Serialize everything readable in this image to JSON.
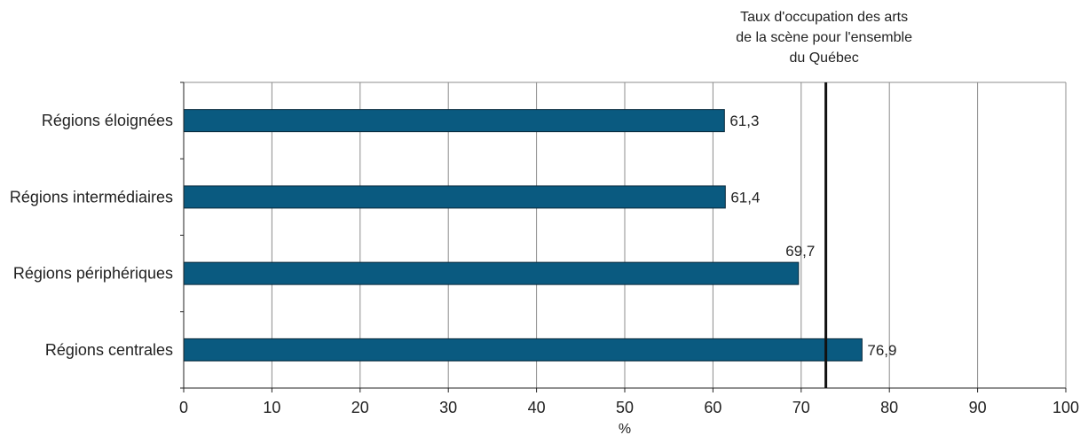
{
  "chart_data": {
    "type": "bar",
    "orientation": "horizontal",
    "categories": [
      "Régions éloignées",
      "Régions intermédiaires",
      "Régions périphériques",
      "Régions centrales"
    ],
    "values": [
      61.3,
      61.4,
      69.7,
      76.9
    ],
    "value_labels": [
      "61,3",
      "61,4",
      "69,7",
      "76,9"
    ],
    "xlabel": "%",
    "xlim": [
      0,
      100
    ],
    "xticks": [
      0,
      10,
      20,
      30,
      40,
      50,
      60,
      70,
      80,
      90,
      100
    ],
    "grid": true,
    "bar_color": "#0a5a80",
    "reference_line": {
      "value": 72.8,
      "label_lines": [
        "Taux d'occupation des arts",
        "de la scène pour l'ensemble",
        "du Québec"
      ]
    }
  }
}
